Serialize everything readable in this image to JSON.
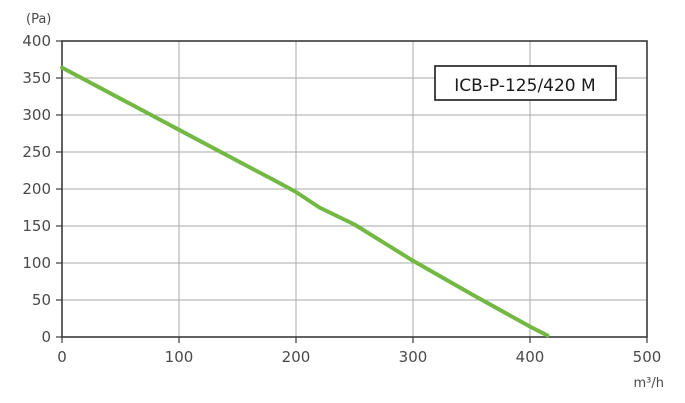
{
  "chart_data": {
    "type": "line",
    "xlabel": "m³/h",
    "ylabel": "(Pa)",
    "xlim": [
      0,
      500
    ],
    "ylim": [
      0,
      400
    ],
    "x_ticks": [
      0,
      100,
      200,
      300,
      400,
      500
    ],
    "y_ticks": [
      0,
      50,
      100,
      150,
      200,
      250,
      300,
      350,
      400
    ],
    "grid": true,
    "annotation": "ICB-P-125/420 M",
    "series": [
      {
        "color": "#72b843",
        "x": [
          0,
          50,
          100,
          150,
          180,
          200,
          220,
          250,
          300,
          350,
          400,
          415
        ],
        "y": [
          364,
          322,
          280,
          238,
          213,
          196,
          175,
          152,
          103,
          58,
          14,
          2
        ]
      }
    ]
  },
  "colors": {
    "grid": "#a8a8a8",
    "frame": "#3a3a3a",
    "text": "#4a4a4a",
    "curve": "#72b843"
  }
}
